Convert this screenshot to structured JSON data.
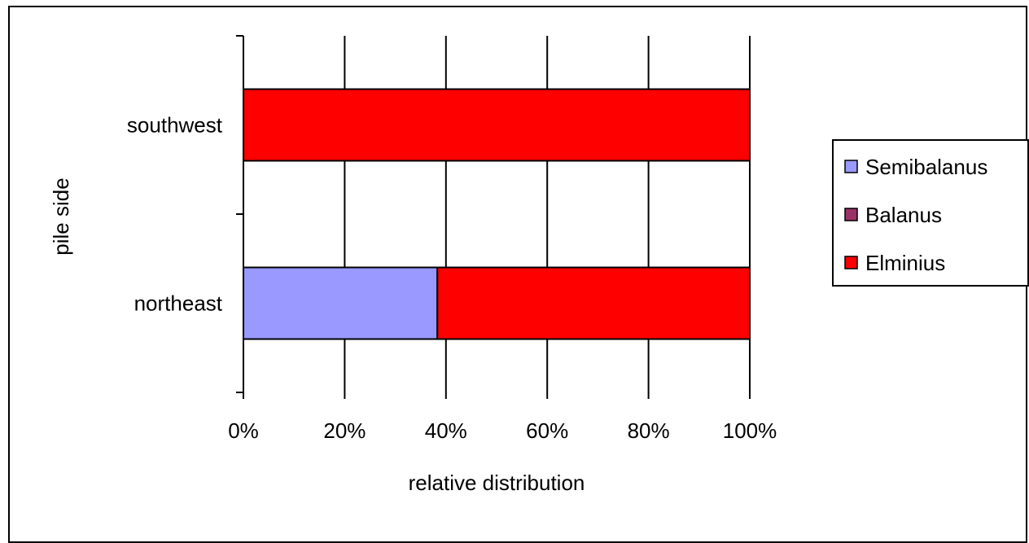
{
  "chart_data": {
    "type": "bar",
    "orientation": "horizontal",
    "stacked": "percent",
    "categories": [
      "southwest",
      "northeast"
    ],
    "series": [
      {
        "name": "Semibalanus",
        "color": "#9999ff",
        "values": [
          0,
          38.3
        ]
      },
      {
        "name": "Balanus",
        "color": "#993366",
        "values": [
          0,
          0
        ]
      },
      {
        "name": "Elminius",
        "color": "#ff0000",
        "values": [
          100,
          61.7
        ]
      }
    ],
    "xlabel": "relative distribution",
    "ylabel": "pile side",
    "xticks": [
      "0%",
      "20%",
      "40%",
      "60%",
      "80%",
      "100%"
    ],
    "xlim": [
      0,
      100
    ],
    "grid": "vertical",
    "legend": "right"
  }
}
